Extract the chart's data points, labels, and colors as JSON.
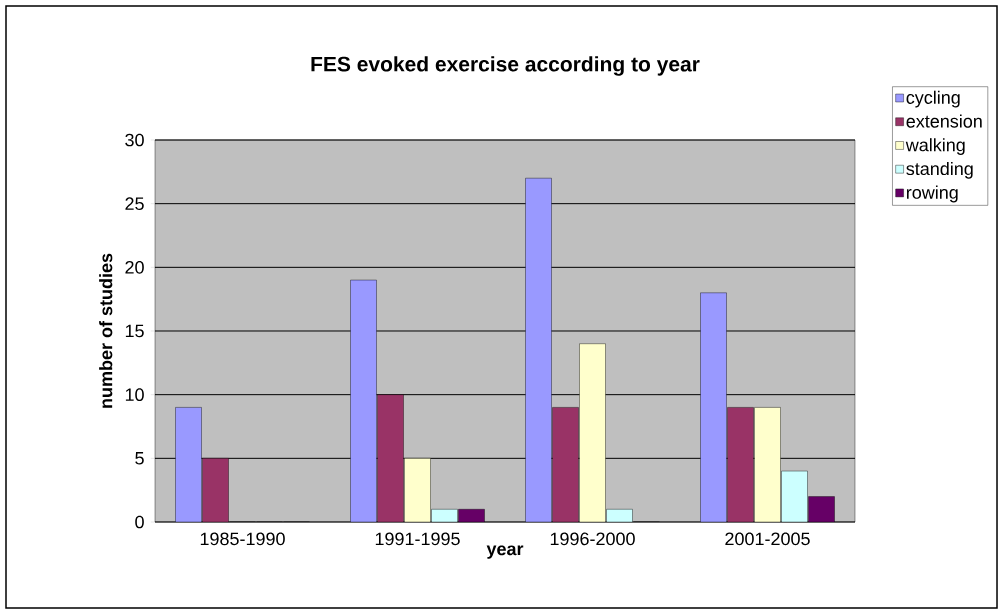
{
  "chart_data": {
    "type": "bar",
    "title": "FES evoked exercise according to year",
    "xlabel": "year",
    "ylabel": "number of studies",
    "categories": [
      "1985-1990",
      "1991-1995",
      "1996-2000",
      "2001-2005"
    ],
    "series": [
      {
        "name": "cycling",
        "color": "#9999ff",
        "values": [
          9,
          19,
          27,
          18
        ]
      },
      {
        "name": "extension",
        "color": "#993366",
        "values": [
          5,
          10,
          9,
          9
        ]
      },
      {
        "name": "walking",
        "color": "#ffffcc",
        "values": [
          0,
          5,
          14,
          9
        ]
      },
      {
        "name": "standing",
        "color": "#ccffff",
        "values": [
          0,
          1,
          1,
          4
        ]
      },
      {
        "name": "rowing",
        "color": "#660066",
        "values": [
          0,
          1,
          0,
          2
        ]
      }
    ],
    "ylim": [
      0,
      30
    ],
    "yticks": [
      0,
      5,
      10,
      15,
      20,
      25,
      30
    ],
    "grid": "y",
    "legend": "top right"
  }
}
